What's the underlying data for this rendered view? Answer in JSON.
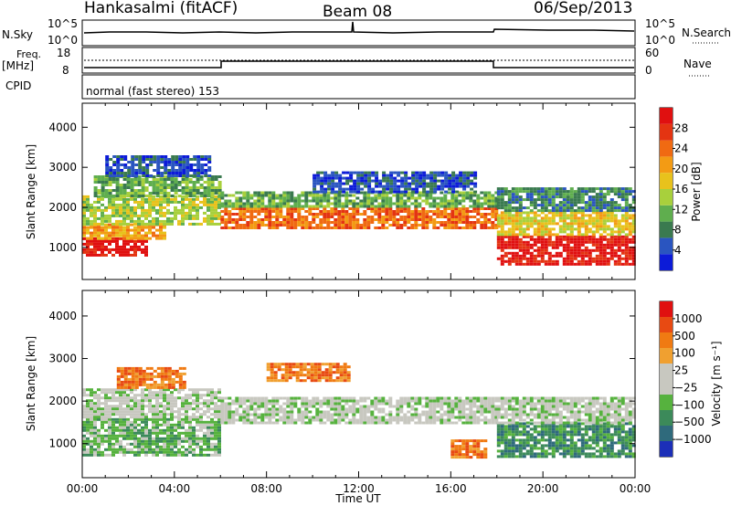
{
  "header": {
    "station": "Hankasalmi (fitACF)",
    "beam": "Beam 08",
    "date": "06/Sep/2013"
  },
  "strips": {
    "noise": {
      "left_label": "N.Sky",
      "right_label": "N.Search",
      "left_ticks": [
        "10^5",
        "10^0"
      ],
      "right_ticks": [
        "10^5",
        "10^0"
      ]
    },
    "freq": {
      "left_label_line1": "Freq.",
      "left_label_line2": "[MHz]",
      "left_ticks": [
        "18",
        "8"
      ],
      "right_label": "Nave",
      "right_ticks": [
        "60",
        "0"
      ]
    },
    "cpid": {
      "label": "CPID",
      "text": "normal (fast stereo) 153"
    }
  },
  "chart_data": [
    {
      "type": "heatmap",
      "name": "power-panel",
      "xlabel": "Time UT",
      "ylabel": "Slant Range [km]",
      "x_ticks": [
        "00:00",
        "04:00",
        "08:00",
        "12:00",
        "16:00",
        "20:00",
        "00:00"
      ],
      "y_ticks": [
        1000,
        2000,
        3000,
        4000
      ],
      "ylim": [
        200,
        4600
      ],
      "xlim_hours": [
        0,
        24
      ],
      "colorbar_label": "Power [dB]",
      "colorbar_ticks": [
        "4",
        "8",
        "12",
        "16",
        "20",
        "24",
        "28"
      ],
      "colorbar_colors": [
        "#0c1bd8",
        "#2a55c0",
        "#3a7a4f",
        "#5fae4e",
        "#a8d03c",
        "#e8c21c",
        "#f39b14",
        "#f06a12",
        "#e43412",
        "#e01010"
      ],
      "bands": [
        {
          "t0": 0.0,
          "t1": 2.7,
          "r0": 800,
          "r1": 1250,
          "level": 9
        },
        {
          "t0": 0.0,
          "t1": 3.5,
          "r0": 1250,
          "r1": 1600,
          "level": 6
        },
        {
          "t0": 0.0,
          "t1": 6.0,
          "r0": 1600,
          "r1": 2300,
          "level": 4
        },
        {
          "t0": 0.5,
          "t1": 6.0,
          "r0": 2300,
          "r1": 2800,
          "level": 3
        },
        {
          "t0": 1.0,
          "t1": 5.5,
          "r0": 2800,
          "r1": 3300,
          "level": 1
        },
        {
          "t0": 6.0,
          "t1": 18.0,
          "r0": 1500,
          "r1": 2000,
          "level": 7
        },
        {
          "t0": 6.0,
          "t1": 18.0,
          "r0": 2000,
          "r1": 2400,
          "level": 3
        },
        {
          "t0": 10.0,
          "t1": 17.0,
          "r0": 2400,
          "r1": 2900,
          "level": 1
        },
        {
          "t0": 18.0,
          "t1": 24.0,
          "r0": 600,
          "r1": 1300,
          "level": 9
        },
        {
          "t0": 18.0,
          "t1": 24.0,
          "r0": 1300,
          "r1": 1900,
          "level": 5
        },
        {
          "t0": 18.0,
          "t1": 24.0,
          "r0": 1900,
          "r1": 2500,
          "level": 2
        }
      ]
    },
    {
      "type": "heatmap",
      "name": "velocity-panel",
      "xlabel": "Time UT",
      "ylabel": "Slant Range [km]",
      "x_ticks": [
        "00:00",
        "04:00",
        "08:00",
        "12:00",
        "16:00",
        "20:00",
        "00:00"
      ],
      "y_ticks": [
        1000,
        2000,
        3000,
        4000
      ],
      "ylim": [
        200,
        4600
      ],
      "xlim_hours": [
        0,
        24
      ],
      "colorbar_label": "Velocity [m s⁻¹]",
      "colorbar_ticks": [
        "1000",
        "500",
        "100",
        "25",
        "−25",
        "−100",
        "−500",
        "−1000"
      ],
      "colorbar_colors": [
        "#1c2fb8",
        "#2f6a7c",
        "#3c8a5a",
        "#56b23e",
        "#c8c8c0",
        "#c8c8c0",
        "#f0a030",
        "#f07a12",
        "#e84a12",
        "#e01010"
      ],
      "bands": [
        {
          "t0": 0.0,
          "t1": 6.0,
          "r0": 700,
          "r1": 1600,
          "level": 3
        },
        {
          "t0": 0.0,
          "t1": 6.0,
          "r0": 1600,
          "r1": 2300,
          "level": 4
        },
        {
          "t0": 1.5,
          "t1": 4.5,
          "r0": 2300,
          "r1": 2800,
          "level": 7
        },
        {
          "t0": 6.0,
          "t1": 18.0,
          "r0": 1500,
          "r1": 2100,
          "level": 4
        },
        {
          "t0": 8.0,
          "t1": 11.5,
          "r0": 2500,
          "r1": 2900,
          "level": 7
        },
        {
          "t0": 16.0,
          "t1": 17.5,
          "r0": 700,
          "r1": 1100,
          "level": 7
        },
        {
          "t0": 18.0,
          "t1": 24.0,
          "r0": 700,
          "r1": 1500,
          "level": 2
        },
        {
          "t0": 18.0,
          "t1": 24.0,
          "r0": 1500,
          "r1": 2100,
          "level": 4
        }
      ]
    }
  ]
}
